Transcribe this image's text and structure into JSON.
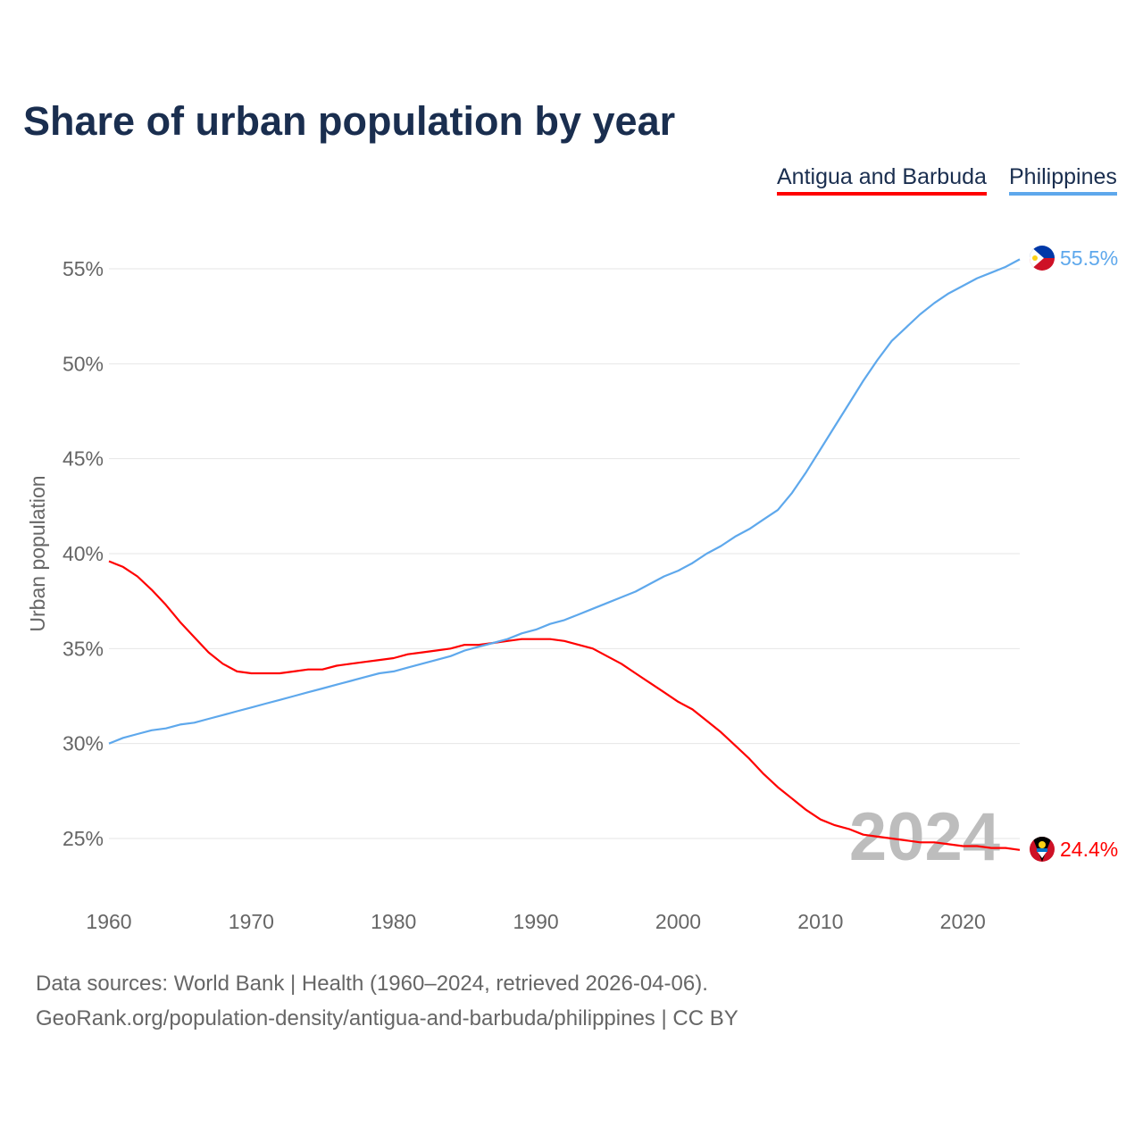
{
  "chart_data": {
    "type": "line",
    "title": "Share of urban population by year",
    "xlabel": "",
    "ylabel": "Urban population",
    "ylim": [
      23,
      56.5
    ],
    "xlim": [
      1960,
      2024
    ],
    "yticks": [
      25,
      30,
      35,
      40,
      45,
      50,
      55
    ],
    "ytick_labels": [
      "25%",
      "30%",
      "35%",
      "40%",
      "45%",
      "50%",
      "55%"
    ],
    "xticks": [
      1960,
      1970,
      1980,
      1990,
      2000,
      2010,
      2020
    ],
    "xtick_labels": [
      "1960",
      "1970",
      "1980",
      "1990",
      "2000",
      "2010",
      "2020"
    ],
    "grid": true,
    "legend_position": "top-right",
    "year_watermark": "2024",
    "series": [
      {
        "name": "Antigua and Barbuda",
        "color": "#ff0000",
        "end_label": "24.4%",
        "flag_icon": "antigua-flag-icon",
        "values": [
          39.6,
          39.3,
          38.8,
          38.1,
          37.3,
          36.4,
          35.6,
          34.8,
          34.2,
          33.8,
          33.7,
          33.7,
          33.7,
          33.8,
          33.9,
          33.9,
          34.1,
          34.2,
          34.3,
          34.4,
          34.5,
          34.7,
          34.8,
          34.9,
          35.0,
          35.2,
          35.2,
          35.3,
          35.4,
          35.5,
          35.5,
          35.5,
          35.4,
          35.2,
          35.0,
          34.6,
          34.2,
          33.7,
          33.2,
          32.7,
          32.2,
          31.8,
          31.2,
          30.6,
          29.9,
          29.2,
          28.4,
          27.7,
          27.1,
          26.5,
          26.0,
          25.7,
          25.5,
          25.2,
          25.1,
          25.0,
          24.9,
          24.8,
          24.8,
          24.7,
          24.6,
          24.6,
          24.5,
          24.5,
          24.4
        ]
      },
      {
        "name": "Philippines",
        "color": "#5ea8ec",
        "end_label": "55.5%",
        "flag_icon": "philippines-flag-icon",
        "values": [
          30.0,
          30.3,
          30.5,
          30.7,
          30.8,
          31.0,
          31.1,
          31.3,
          31.5,
          31.7,
          31.9,
          32.1,
          32.3,
          32.5,
          32.7,
          32.9,
          33.1,
          33.3,
          33.5,
          33.7,
          33.8,
          34.0,
          34.2,
          34.4,
          34.6,
          34.9,
          35.1,
          35.3,
          35.5,
          35.8,
          36.0,
          36.3,
          36.5,
          36.8,
          37.1,
          37.4,
          37.7,
          38.0,
          38.4,
          38.8,
          39.1,
          39.5,
          40.0,
          40.4,
          40.9,
          41.3,
          41.8,
          42.3,
          43.2,
          44.3,
          45.5,
          46.7,
          47.9,
          49.1,
          50.2,
          51.2,
          51.9,
          52.6,
          53.2,
          53.7,
          54.1,
          54.5,
          54.8,
          55.1,
          55.5
        ]
      }
    ]
  },
  "footer": {
    "line1": "Data sources: World Bank | Health (1960–2024, retrieved 2026-04-06).",
    "line2": "GeoRank.org/population-density/antigua-and-barbuda/philippines | CC BY"
  }
}
